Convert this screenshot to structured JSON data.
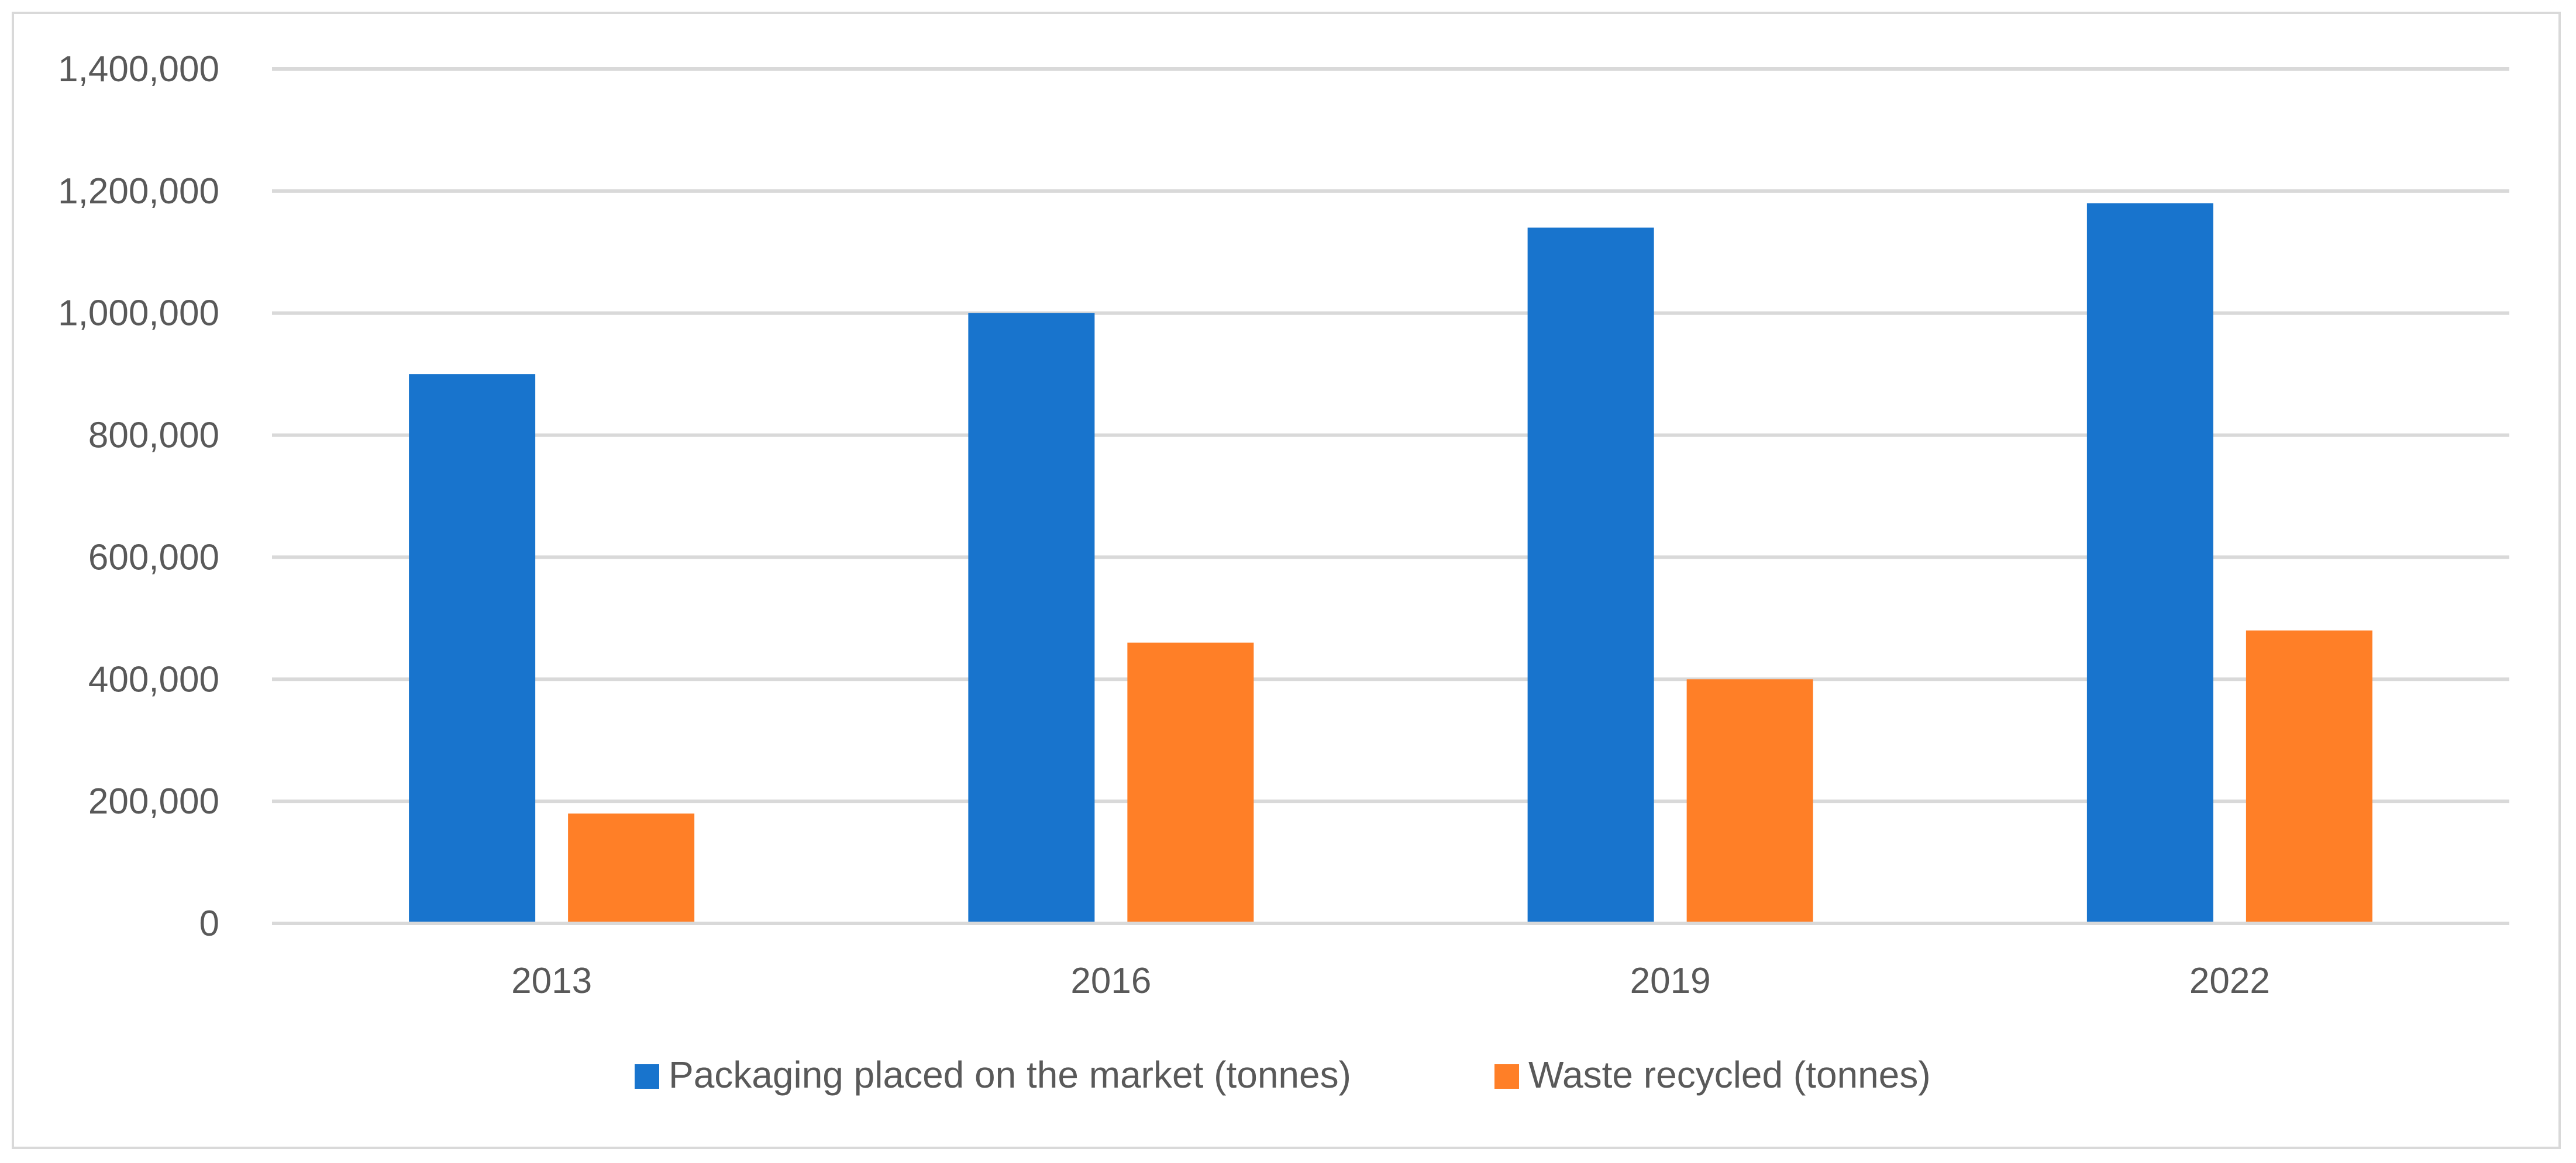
{
  "chart_data": {
    "type": "bar",
    "categories": [
      "2013",
      "2016",
      "2019",
      "2022"
    ],
    "series": [
      {
        "name": "Packaging placed on the market (tonnes)",
        "color": "#1874CD",
        "values": [
          900000,
          1000000,
          1140000,
          1180000
        ]
      },
      {
        "name": "Waste recycled (tonnes)",
        "color": "#FF7F27",
        "values": [
          180000,
          460000,
          400000,
          480000
        ]
      }
    ],
    "y_ticks": [
      "0",
      "200,000",
      "400,000",
      "600,000",
      "800,000",
      "1,000,000",
      "1,200,000",
      "1,400,000"
    ],
    "y_tick_values": [
      0,
      200000,
      400000,
      600000,
      800000,
      1000000,
      1200000,
      1400000
    ],
    "ylim": [
      0,
      1400000
    ],
    "title": "",
    "xlabel": "",
    "ylabel": "",
    "grid": true,
    "legend_position": "bottom"
  }
}
